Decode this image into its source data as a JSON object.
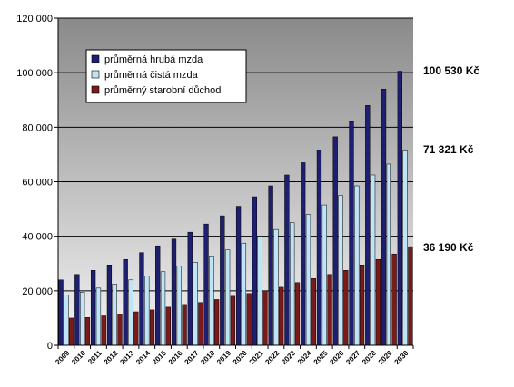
{
  "chart_data": {
    "type": "bar",
    "title": "",
    "xlabel": "",
    "ylabel": "",
    "ylim": [
      0,
      120000
    ],
    "yticks": [
      0,
      20000,
      40000,
      60000,
      80000,
      100000,
      120000
    ],
    "ytick_labels": [
      "0",
      "20 000",
      "40 000",
      "60 000",
      "80 000",
      "100 000",
      "120 000"
    ],
    "grid": true,
    "legend_position": "top-left",
    "categories": [
      "2009",
      "2010",
      "2011",
      "2012",
      "2013",
      "2014",
      "2015",
      "2016",
      "2017",
      "2018",
      "2019",
      "2020",
      "2021",
      "2022",
      "2023",
      "2024",
      "2025",
      "2026",
      "2027",
      "2028",
      "2029",
      "2030"
    ],
    "series": [
      {
        "name": "průměrná hrubá mzda",
        "color": "#1f1f70",
        "values": [
          24000,
          26000,
          27500,
          29500,
          31500,
          34000,
          36500,
          39000,
          41500,
          44500,
          47500,
          51000,
          54500,
          58500,
          62500,
          67000,
          71500,
          76500,
          82000,
          88000,
          94000,
          100530
        ]
      },
      {
        "name": "průměrná čistá mzda",
        "color": "#bfe3f7",
        "values": [
          18500,
          19500,
          21000,
          22500,
          24000,
          25500,
          27000,
          29000,
          30500,
          32500,
          35000,
          37500,
          40000,
          42500,
          45000,
          48000,
          51500,
          55000,
          58500,
          62500,
          66500,
          71321
        ]
      },
      {
        "name": "průměrný starobní důchod",
        "color": "#7a1a1a",
        "values": [
          10000,
          10200,
          10800,
          11500,
          12300,
          13000,
          14000,
          15000,
          15700,
          16800,
          18000,
          19000,
          20000,
          21300,
          23000,
          24500,
          26000,
          27500,
          29500,
          31500,
          33500,
          36190
        ]
      }
    ],
    "annotations": [
      {
        "text": "100 530 Kč",
        "value": 100530
      },
      {
        "text": "71 321 Kč",
        "value": 71321
      },
      {
        "text": "36 190 Kč",
        "value": 36190
      }
    ],
    "colors": {
      "plot_bg_top": "#8a8a8a",
      "plot_bg_bottom": "#f4f4f4",
      "gridline": "#000000",
      "legend_bg": "#ffffff"
    }
  }
}
